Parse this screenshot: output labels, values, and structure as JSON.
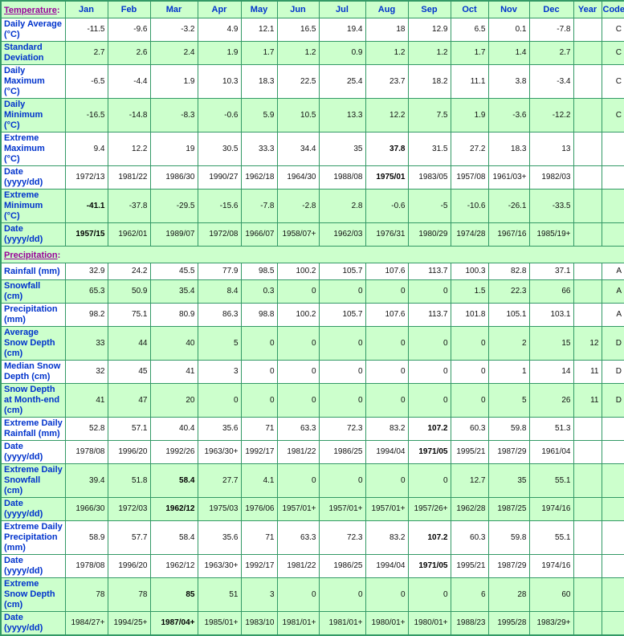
{
  "table": {
    "corner_label": "Temperature",
    "corner_colon": ":",
    "months": [
      "Jan",
      "Feb",
      "Mar",
      "Apr",
      "May",
      "Jun",
      "Jul",
      "Aug",
      "Sep",
      "Oct",
      "Nov",
      "Dec"
    ],
    "year_label": "Year",
    "code_label": "Code",
    "colors": {
      "border_green": "#339966",
      "row_green": "#ccffcc",
      "label_blue": "#0033cc",
      "link_purple": "#990099"
    },
    "rows": [
      {
        "label": "Daily Average\n(°C)",
        "lines": 2,
        "shaded": false,
        "thick_top": false,
        "bold": [],
        "values": [
          "-11.5",
          "-9.6",
          "-3.2",
          "4.9",
          "12.1",
          "16.5",
          "19.4",
          "18",
          "12.9",
          "6.5",
          "0.1",
          "-7.8"
        ],
        "year": "",
        "code": "C"
      },
      {
        "label": "Standard\nDeviation",
        "lines": 2,
        "shaded": true,
        "thick_top": false,
        "bold": [],
        "values": [
          "2.7",
          "2.6",
          "2.4",
          "1.9",
          "1.7",
          "1.2",
          "0.9",
          "1.2",
          "1.2",
          "1.7",
          "1.4",
          "2.7"
        ],
        "year": "",
        "code": "C"
      },
      {
        "label": "Daily\nMaximum\n(°C)",
        "lines": 3,
        "shaded": false,
        "thick_top": false,
        "bold": [],
        "values": [
          "-6.5",
          "-4.4",
          "1.9",
          "10.3",
          "18.3",
          "22.5",
          "25.4",
          "23.7",
          "18.2",
          "11.1",
          "3.8",
          "-3.4"
        ],
        "year": "",
        "code": "C"
      },
      {
        "label": "Daily\nMinimum\n(°C)",
        "lines": 3,
        "shaded": true,
        "thick_top": false,
        "bold": [],
        "values": [
          "-16.5",
          "-14.8",
          "-8.3",
          "-0.6",
          "5.9",
          "10.5",
          "13.3",
          "12.2",
          "7.5",
          "1.9",
          "-3.6",
          "-12.2"
        ],
        "year": "",
        "code": "C"
      },
      {
        "label": "Extreme\nMaximum\n(°C)",
        "lines": 3,
        "shaded": false,
        "thick_top": true,
        "bold": [
          7
        ],
        "values": [
          "9.4",
          "12.2",
          "19",
          "30.5",
          "33.3",
          "34.4",
          "35",
          "37.8",
          "31.5",
          "27.2",
          "18.3",
          "13"
        ],
        "year": "",
        "code": ""
      },
      {
        "label": "Date\n(yyyy/dd)",
        "lines": 2,
        "shaded": false,
        "thick_top": false,
        "bold": [
          7
        ],
        "values": [
          "1972/13",
          "1981/22",
          "1986/30",
          "1990/27",
          "1962/18",
          "1964/30",
          "1988/08",
          "1975/01",
          "1983/05",
          "1957/08",
          "1961/03+",
          "1982/03"
        ],
        "year": "",
        "code": ""
      },
      {
        "label": "Extreme\nMinimum\n(°C)",
        "lines": 3,
        "shaded": true,
        "thick_top": false,
        "bold": [
          0
        ],
        "values": [
          "-41.1",
          "-37.8",
          "-29.5",
          "-15.6",
          "-7.8",
          "-2.8",
          "2.8",
          "-0.6",
          "-5",
          "-10.6",
          "-26.1",
          "-33.5"
        ],
        "year": "",
        "code": ""
      },
      {
        "label": "Date\n(yyyy/dd)",
        "lines": 2,
        "shaded": true,
        "thick_top": false,
        "bold": [
          0
        ],
        "values": [
          "1957/15",
          "1962/01",
          "1989/07",
          "1972/08",
          "1966/07",
          "1958/07+",
          "1962/03",
          "1976/31",
          "1980/29",
          "1974/28",
          "1967/16",
          "1985/19+"
        ],
        "year": "",
        "code": ""
      },
      {
        "section": true,
        "label": "Precipitation",
        "colon": ":"
      },
      {
        "label": "Rainfall (mm)",
        "lines": 1,
        "shaded": false,
        "thick_top": false,
        "bold": [],
        "values": [
          "32.9",
          "24.2",
          "45.5",
          "77.9",
          "98.5",
          "100.2",
          "105.7",
          "107.6",
          "113.7",
          "100.3",
          "82.8",
          "37.1"
        ],
        "year": "",
        "code": "A"
      },
      {
        "label": "Snowfall\n(cm)",
        "lines": 2,
        "shaded": true,
        "thick_top": false,
        "bold": [],
        "values": [
          "65.3",
          "50.9",
          "35.4",
          "8.4",
          "0.3",
          "0",
          "0",
          "0",
          "0",
          "1.5",
          "22.3",
          "66"
        ],
        "year": "",
        "code": "A"
      },
      {
        "label": "Precipitation\n(mm)",
        "lines": 2,
        "shaded": false,
        "thick_top": false,
        "bold": [],
        "values": [
          "98.2",
          "75.1",
          "80.9",
          "86.3",
          "98.8",
          "100.2",
          "105.7",
          "107.6",
          "113.7",
          "101.8",
          "105.1",
          "103.1"
        ],
        "year": "",
        "code": "A"
      },
      {
        "label": "Average\nSnow Depth\n(cm)",
        "lines": 3,
        "shaded": true,
        "thick_top": false,
        "bold": [],
        "values": [
          "33",
          "44",
          "40",
          "5",
          "0",
          "0",
          "0",
          "0",
          "0",
          "0",
          "2",
          "15"
        ],
        "year": "12",
        "code": "D"
      },
      {
        "label": "Median Snow\nDepth (cm)",
        "lines": 2,
        "shaded": false,
        "thick_top": false,
        "bold": [],
        "values": [
          "32",
          "45",
          "41",
          "3",
          "0",
          "0",
          "0",
          "0",
          "0",
          "0",
          "1",
          "14"
        ],
        "year": "11",
        "code": "D"
      },
      {
        "label": "Snow Depth\nat Month-end\n(cm)",
        "lines": 3,
        "shaded": true,
        "thick_top": false,
        "bold": [],
        "values": [
          "41",
          "47",
          "20",
          "0",
          "0",
          "0",
          "0",
          "0",
          "0",
          "0",
          "5",
          "26"
        ],
        "year": "11",
        "code": "D"
      },
      {
        "label": "Extreme Daily\nRainfall (mm)",
        "lines": 2,
        "shaded": false,
        "thick_top": true,
        "bold": [
          8
        ],
        "values": [
          "52.8",
          "57.1",
          "40.4",
          "35.6",
          "71",
          "63.3",
          "72.3",
          "83.2",
          "107.2",
          "60.3",
          "59.8",
          "51.3"
        ],
        "year": "",
        "code": ""
      },
      {
        "label": "Date\n(yyyy/dd)",
        "lines": 2,
        "shaded": false,
        "thick_top": false,
        "bold": [
          8
        ],
        "values": [
          "1978/08",
          "1996/20",
          "1992/26",
          "1963/30+",
          "1992/17",
          "1981/22",
          "1986/25",
          "1994/04",
          "1971/05",
          "1995/21",
          "1987/29",
          "1961/04"
        ],
        "year": "",
        "code": ""
      },
      {
        "label": "Extreme Daily\nSnowfall\n(cm)",
        "lines": 3,
        "shaded": true,
        "thick_top": true,
        "bold": [
          2
        ],
        "values": [
          "39.4",
          "51.8",
          "58.4",
          "27.7",
          "4.1",
          "0",
          "0",
          "0",
          "0",
          "12.7",
          "35",
          "55.1"
        ],
        "year": "",
        "code": ""
      },
      {
        "label": "Date\n(yyyy/dd)",
        "lines": 2,
        "shaded": true,
        "thick_top": false,
        "bold": [
          2
        ],
        "values": [
          "1966/30",
          "1972/03",
          "1962/12",
          "1975/03",
          "1976/06",
          "1957/01+",
          "1957/01+",
          "1957/01+",
          "1957/26+",
          "1962/28",
          "1987/25",
          "1974/16"
        ],
        "year": "",
        "code": ""
      },
      {
        "label": "Extreme Daily\nPrecipitation\n(mm)",
        "lines": 3,
        "shaded": false,
        "thick_top": true,
        "bold": [
          8
        ],
        "values": [
          "58.9",
          "57.7",
          "58.4",
          "35.6",
          "71",
          "63.3",
          "72.3",
          "83.2",
          "107.2",
          "60.3",
          "59.8",
          "55.1"
        ],
        "year": "",
        "code": ""
      },
      {
        "label": "Date\n(yyyy/dd)",
        "lines": 2,
        "shaded": false,
        "thick_top": false,
        "bold": [
          8
        ],
        "values": [
          "1978/08",
          "1996/20",
          "1962/12",
          "1963/30+",
          "1992/17",
          "1981/22",
          "1986/25",
          "1994/04",
          "1971/05",
          "1995/21",
          "1987/29",
          "1974/16"
        ],
        "year": "",
        "code": ""
      },
      {
        "label": "Extreme\nSnow Depth\n(cm)",
        "lines": 3,
        "shaded": true,
        "thick_top": true,
        "bold": [
          2
        ],
        "values": [
          "78",
          "78",
          "85",
          "51",
          "3",
          "0",
          "0",
          "0",
          "0",
          "6",
          "28",
          "60"
        ],
        "year": "",
        "code": ""
      },
      {
        "label": "Date\n(yyyy/dd)",
        "lines": 2,
        "shaded": true,
        "thick_top": false,
        "bold": [
          2
        ],
        "values": [
          "1984/27+",
          "1994/25+",
          "1987/04+",
          "1985/01+",
          "1983/10",
          "1981/01+",
          "1981/01+",
          "1980/01+",
          "1980/01+",
          "1988/23",
          "1995/28",
          "1983/29+"
        ],
        "year": "",
        "code": ""
      }
    ]
  }
}
